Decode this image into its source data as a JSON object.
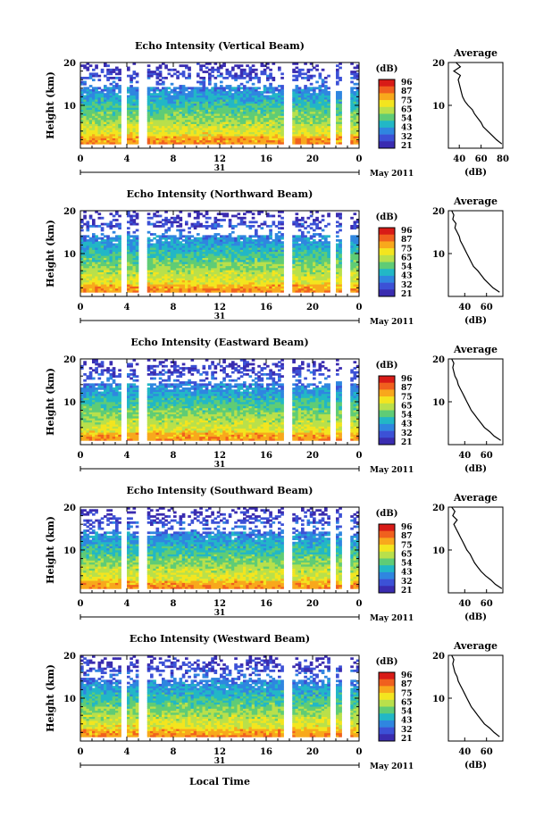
{
  "common": {
    "height_label": "Height (km)",
    "height_ticks": [
      "20",
      "10",
      "0"
    ],
    "time_ticks": [
      "0",
      "4",
      "8",
      "12",
      "16",
      "20",
      "0"
    ],
    "day_label": "31",
    "month_label": "May 2011",
    "colorbar_unit": "(dB)",
    "colorbar_ticks": [
      "96",
      "87",
      "75",
      "65",
      "54",
      "43",
      "32",
      "21"
    ],
    "colors": [
      "#d81b17",
      "#f0601e",
      "#f8a81c",
      "#f3e51f",
      "#b9e04b",
      "#5fcc76",
      "#22b7c6",
      "#2f86e0",
      "#3c51d6",
      "#3a2cb0"
    ],
    "avg_title": "Average",
    "avg_xlabel": "(dB)",
    "local_time_label": "Local Time"
  },
  "chart_data": [
    {
      "type": "heatmap",
      "title": "Echo Intensity (Vertical Beam)",
      "xlabel": "",
      "ylabel": "Height (km)",
      "xlim": [
        0,
        24
      ],
      "ylim": [
        0,
        20
      ],
      "colorbar_range": [
        21,
        96
      ],
      "data_gaps_hours": [
        [
          3.5,
          4.0
        ],
        [
          5.0,
          5.8
        ],
        [
          17.6,
          18.2
        ],
        [
          21.4,
          22.0
        ],
        [
          22.6,
          23.2
        ]
      ],
      "profile": {
        "title": "Average",
        "xlabel": "(dB)",
        "xticks": [
          "40",
          "60",
          "80"
        ],
        "xlim": [
          30,
          80
        ],
        "height": [
          1,
          2,
          3,
          4,
          5,
          6,
          7,
          8,
          9,
          10,
          11,
          12,
          13,
          14,
          15,
          16,
          17,
          18,
          19,
          20
        ],
        "values": [
          79,
          74,
          70,
          66,
          62,
          60,
          57,
          54,
          52,
          48,
          45,
          43,
          42,
          41,
          40,
          39,
          41,
          35,
          41,
          37
        ]
      }
    },
    {
      "type": "heatmap",
      "title": "Echo Intensity (Northward Beam)",
      "xlabel": "",
      "ylabel": "Height (km)",
      "xlim": [
        0,
        24
      ],
      "ylim": [
        0,
        20
      ],
      "colorbar_range": [
        21,
        96
      ],
      "data_gaps_hours": [
        [
          3.5,
          4.0
        ],
        [
          5.0,
          5.8
        ],
        [
          17.6,
          18.2
        ],
        [
          21.4,
          22.0
        ],
        [
          22.6,
          23.2
        ]
      ],
      "profile": {
        "title": "Average",
        "xlabel": "(dB)",
        "xticks": [
          "40",
          "60"
        ],
        "xlim": [
          25,
          75
        ],
        "height": [
          1,
          2,
          3,
          4,
          5,
          6,
          7,
          8,
          9,
          10,
          11,
          12,
          13,
          14,
          15,
          16,
          17,
          18,
          19,
          20
        ],
        "values": [
          72,
          66,
          62,
          58,
          55,
          52,
          48,
          46,
          44,
          42,
          40,
          38,
          36,
          35,
          33,
          31,
          32,
          29,
          30,
          28
        ]
      }
    },
    {
      "type": "heatmap",
      "title": "Echo Intensity (Eastward Beam)",
      "xlabel": "",
      "ylabel": "Height (km)",
      "xlim": [
        0,
        24
      ],
      "ylim": [
        0,
        20
      ],
      "colorbar_range": [
        21,
        96
      ],
      "data_gaps_hours": [
        [
          3.5,
          4.0
        ],
        [
          5.0,
          5.8
        ],
        [
          17.6,
          18.2
        ],
        [
          21.4,
          22.0
        ],
        [
          22.6,
          23.2
        ]
      ],
      "profile": {
        "title": "Average",
        "xlabel": "(dB)",
        "xticks": [
          "40",
          "60"
        ],
        "xlim": [
          25,
          75
        ],
        "height": [
          1,
          2,
          3,
          4,
          5,
          6,
          7,
          8,
          9,
          10,
          11,
          12,
          13,
          14,
          15,
          16,
          17,
          18,
          19,
          20
        ],
        "values": [
          73,
          67,
          63,
          58,
          55,
          52,
          49,
          46,
          44,
          42,
          40,
          38,
          36,
          34,
          33,
          31,
          30,
          29,
          30,
          28
        ]
      }
    },
    {
      "type": "heatmap",
      "title": "Echo Intensity (Southward Beam)",
      "xlabel": "",
      "ylabel": "Height (km)",
      "xlim": [
        0,
        24
      ],
      "ylim": [
        0,
        20
      ],
      "colorbar_range": [
        21,
        96
      ],
      "data_gaps_hours": [
        [
          3.5,
          4.0
        ],
        [
          5.0,
          5.8
        ],
        [
          17.6,
          18.2
        ],
        [
          21.4,
          22.0
        ],
        [
          22.6,
          23.2
        ]
      ],
      "profile": {
        "title": "Average",
        "xlabel": "(dB)",
        "xticks": [
          "40",
          "60"
        ],
        "xlim": [
          25,
          75
        ],
        "height": [
          1,
          2,
          3,
          4,
          5,
          6,
          7,
          8,
          9,
          10,
          11,
          12,
          13,
          14,
          15,
          16,
          17,
          18,
          19,
          20
        ],
        "values": [
          74,
          68,
          64,
          59,
          55,
          52,
          49,
          47,
          45,
          42,
          40,
          38,
          36,
          34,
          32,
          30,
          33,
          29,
          31,
          28
        ]
      }
    },
    {
      "type": "heatmap",
      "title": "Echo Intensity (Westward Beam)",
      "xlabel": "Local Time",
      "ylabel": "Height (km)",
      "xlim": [
        0,
        24
      ],
      "ylim": [
        0,
        20
      ],
      "colorbar_range": [
        21,
        96
      ],
      "data_gaps_hours": [
        [
          3.5,
          4.0
        ],
        [
          5.0,
          5.8
        ],
        [
          17.6,
          18.2
        ],
        [
          21.4,
          22.0
        ],
        [
          22.6,
          23.2
        ]
      ],
      "profile": {
        "title": "Average",
        "xlabel": "(dB)",
        "xticks": [
          "40",
          "60"
        ],
        "xlim": [
          25,
          75
        ],
        "height": [
          1,
          2,
          3,
          4,
          5,
          6,
          7,
          8,
          9,
          10,
          11,
          12,
          13,
          14,
          15,
          16,
          17,
          18,
          19,
          20
        ],
        "values": [
          72,
          67,
          63,
          58,
          55,
          52,
          49,
          46,
          44,
          42,
          40,
          38,
          36,
          34,
          33,
          31,
          30,
          29,
          30,
          28
        ]
      }
    }
  ]
}
